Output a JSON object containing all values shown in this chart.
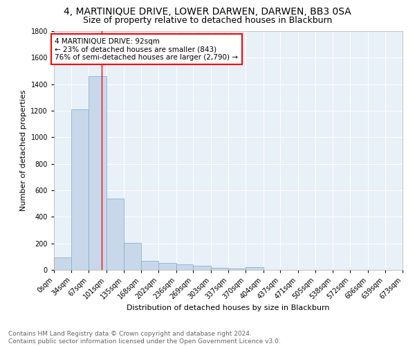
{
  "title": "4, MARTINIQUE DRIVE, LOWER DARWEN, DARWEN, BB3 0SA",
  "subtitle": "Size of property relative to detached houses in Blackburn",
  "xlabel": "Distribution of detached houses by size in Blackburn",
  "ylabel": "Number of detached properties",
  "bar_color": "#c8d8ea",
  "bar_edge_color": "#7aaacb",
  "background_color": "#e8f0f8",
  "grid_color": "white",
  "bin_edges": [
    0,
    34,
    67,
    101,
    135,
    168,
    202,
    236,
    269,
    303,
    337,
    370,
    404,
    437,
    471,
    505,
    538,
    572,
    606,
    639,
    673
  ],
  "bin_labels": [
    "0sqm",
    "34sqm",
    "67sqm",
    "101sqm",
    "135sqm",
    "168sqm",
    "202sqm",
    "236sqm",
    "269sqm",
    "303sqm",
    "337sqm",
    "370sqm",
    "404sqm",
    "437sqm",
    "471sqm",
    "505sqm",
    "538sqm",
    "572sqm",
    "606sqm",
    "639sqm",
    "673sqm"
  ],
  "bar_heights": [
    96,
    1210,
    1460,
    535,
    205,
    70,
    50,
    40,
    30,
    15,
    10,
    20,
    0,
    0,
    0,
    0,
    0,
    0,
    0,
    0
  ],
  "property_size": 92,
  "red_line_x": 92,
  "annotation_text": "4 MARTINIQUE DRIVE: 92sqm\n← 23% of detached houses are smaller (843)\n76% of semi-detached houses are larger (2,790) →",
  "annotation_box_color": "white",
  "annotation_box_edge_color": "red",
  "ylim": [
    0,
    1800
  ],
  "yticks": [
    0,
    200,
    400,
    600,
    800,
    1000,
    1200,
    1400,
    1600,
    1800
  ],
  "footer_line1": "Contains HM Land Registry data © Crown copyright and database right 2024.",
  "footer_line2": "Contains public sector information licensed under the Open Government Licence v3.0.",
  "title_fontsize": 10,
  "subtitle_fontsize": 9,
  "annotation_fontsize": 7.5,
  "footer_fontsize": 6.5,
  "axis_label_fontsize": 8,
  "tick_fontsize": 7
}
